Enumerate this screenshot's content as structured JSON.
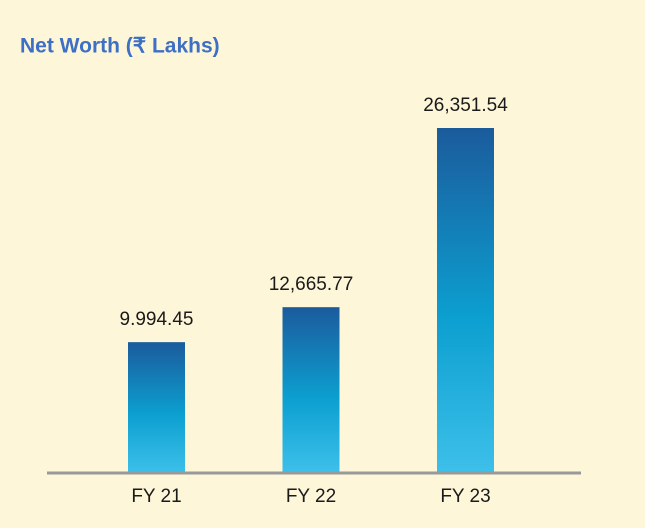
{
  "chart_data": {
    "type": "bar",
    "title": "Net Worth (₹ Lakhs)",
    "categories": [
      "FY 21",
      "FY 22",
      "FY 23"
    ],
    "values": [
      9994.45,
      12665.77,
      26351.54
    ],
    "value_labels": [
      "9.994.45",
      "12,665.77",
      "26,351.54"
    ]
  }
}
